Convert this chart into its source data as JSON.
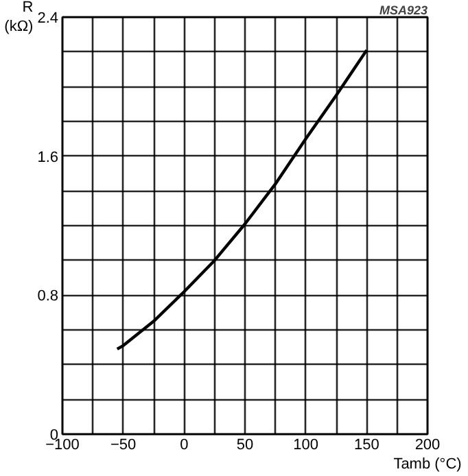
{
  "chart_data": {
    "type": "line",
    "xlabel": "Tamb (°C)",
    "ylabel": "R (kΩ)",
    "annotations": [
      "MSA923"
    ],
    "x": [
      -55,
      -50,
      -25,
      0,
      25,
      50,
      75,
      100,
      125,
      150
    ],
    "series": [
      {
        "color": "#000000",
        "values": [
          0.49,
          0.51,
          0.65,
          0.82,
          1.0,
          1.21,
          1.44,
          1.7,
          1.95,
          2.21
        ]
      }
    ],
    "xlim": [
      -100,
      200
    ],
    "ylim": [
      0,
      2.4
    ],
    "xticks": [
      {
        "value": -100,
        "label": "−100"
      },
      {
        "value": -75,
        "label": null
      },
      {
        "value": -50,
        "label": "−50"
      },
      {
        "value": -25,
        "label": null
      },
      0,
      {
        "value": 25,
        "label": null
      },
      50,
      {
        "value": 75,
        "label": null
      },
      100,
      {
        "value": 125,
        "label": null
      },
      150,
      {
        "value": 175,
        "label": null
      },
      200
    ],
    "yticks": [
      0,
      {
        "value": 0.2,
        "label": null
      },
      {
        "value": 0.4,
        "label": null
      },
      {
        "value": 0.6,
        "label": null
      },
      0.8,
      {
        "value": 1.0,
        "label": null
      },
      {
        "value": 1.2,
        "label": null
      },
      {
        "value": 1.4,
        "label": null
      },
      1.6,
      {
        "value": 1.8,
        "label": null
      },
      {
        "value": 2.0,
        "label": null
      },
      {
        "value": 2.2,
        "label": null
      },
      2.4
    ],
    "grid": true,
    "marker": "none",
    "line_style": "solid"
  }
}
